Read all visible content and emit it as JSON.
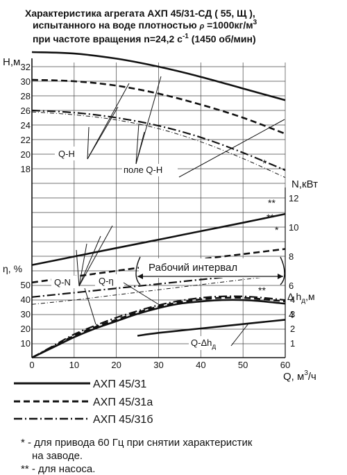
{
  "title": {
    "line1": "Характеристика агрегата АХП 45/31-СД ( 55, Щ ),",
    "line2a": "испытанного на воде плотностью ",
    "line2_rho": "ρ",
    "line2b": " =1000кг/м",
    "line2_exp": "3",
    "line3a": "при частоте вращения n=24,2 с",
    "line3_exp": "-1",
    "line3b": " (1450 об/мин)"
  },
  "chart_data": {
    "type": "line",
    "x": {
      "label": "Q, м",
      "label_exp": "3",
      "label_unit": "/ч",
      "range": [
        0,
        60
      ],
      "ticks": [
        "0",
        "10",
        "20",
        "30",
        "40",
        "50",
        "60"
      ]
    },
    "axes": {
      "H": {
        "label": "H,м",
        "range": [
          16,
          34
        ],
        "ticks": [
          "18",
          "20",
          "22",
          "24",
          "26",
          "28",
          "30",
          "32"
        ]
      },
      "N": {
        "label": "N,кВт",
        "range": [
          3,
          13
        ],
        "ticks": [
          "4",
          "6",
          "8",
          "10",
          "12"
        ]
      },
      "eta": {
        "label": "η, %",
        "range": [
          0,
          60
        ],
        "ticks": [
          "10",
          "20",
          "30",
          "40",
          "50"
        ]
      },
      "dh": {
        "label": "Δ h",
        "label_sub": "д",
        "label_suffix": ",м",
        "range": [
          0,
          5
        ],
        "ticks": [
          "1",
          "2",
          "3",
          "4"
        ]
      }
    },
    "series": [
      {
        "name": "АХП 45/31",
        "style": "solid",
        "QH": [
          [
            0,
            34.0
          ],
          [
            10,
            33.8
          ],
          [
            20,
            33.1
          ],
          [
            30,
            32.0
          ],
          [
            40,
            30.6
          ],
          [
            50,
            29.0
          ],
          [
            60,
            27.4
          ]
        ],
        "QN": [
          [
            0,
            7.4
          ],
          [
            10,
            7.98
          ],
          [
            20,
            8.56
          ],
          [
            30,
            9.14
          ],
          [
            40,
            9.72
          ],
          [
            50,
            10.3
          ],
          [
            60,
            10.9
          ]
        ],
        "Qeta": [
          [
            0,
            0
          ],
          [
            5,
            7
          ],
          [
            10,
            14
          ],
          [
            15,
            20
          ],
          [
            20,
            25
          ],
          [
            25,
            30
          ],
          [
            30,
            34
          ],
          [
            35,
            37
          ],
          [
            40,
            38.5
          ],
          [
            45,
            39.5
          ],
          [
            50,
            39.5
          ],
          [
            55,
            38.5
          ],
          [
            60,
            37
          ]
        ],
        "Qdh": [
          [
            25,
            1.5
          ],
          [
            30,
            1.7
          ],
          [
            40,
            2.0
          ],
          [
            50,
            2.3
          ],
          [
            60,
            2.6
          ]
        ]
      },
      {
        "name": "АХП 45/31а",
        "style": "dashed",
        "QH": [
          [
            0,
            30.2
          ],
          [
            10,
            30.0
          ],
          [
            20,
            29.4
          ],
          [
            30,
            28.3
          ],
          [
            40,
            26.8
          ],
          [
            50,
            25.0
          ],
          [
            60,
            22.8
          ]
        ],
        "QN": [
          [
            0,
            6.2
          ],
          [
            10,
            6.6
          ],
          [
            20,
            7.0
          ],
          [
            30,
            7.4
          ],
          [
            40,
            7.8
          ],
          [
            50,
            8.15
          ],
          [
            60,
            8.5
          ]
        ],
        "Qeta": [
          [
            0,
            0
          ],
          [
            5,
            7.5
          ],
          [
            10,
            15
          ],
          [
            15,
            21
          ],
          [
            20,
            26
          ],
          [
            25,
            31
          ],
          [
            30,
            35
          ],
          [
            35,
            38
          ],
          [
            40,
            40
          ],
          [
            45,
            41
          ],
          [
            50,
            41
          ],
          [
            55,
            40
          ],
          [
            60,
            38.5
          ]
        ]
      },
      {
        "name": "АХП 45/31б",
        "style": "dash-dot",
        "QH": [
          [
            0,
            26.0
          ],
          [
            10,
            25.7
          ],
          [
            20,
            25.0
          ],
          [
            30,
            23.9
          ],
          [
            40,
            22.3
          ],
          [
            50,
            20.2
          ],
          [
            60,
            17.8
          ]
        ],
        "QN": [
          [
            0,
            5.2
          ],
          [
            10,
            5.5
          ],
          [
            20,
            5.8
          ],
          [
            30,
            6.1
          ],
          [
            40,
            6.4
          ],
          [
            50,
            6.7
          ],
          [
            60,
            7.0
          ]
        ],
        "Qeta": [
          [
            0,
            0
          ],
          [
            5,
            8
          ],
          [
            10,
            16
          ],
          [
            15,
            22
          ],
          [
            20,
            27.5
          ],
          [
            25,
            32
          ],
          [
            30,
            36
          ],
          [
            35,
            39
          ],
          [
            40,
            41
          ],
          [
            45,
            42
          ],
          [
            50,
            42
          ],
          [
            55,
            41
          ],
          [
            60,
            39.5
          ]
        ]
      },
      {
        "name": "",
        "style": "thin-dash-dot",
        "QH": [
          [
            0,
            25.8
          ],
          [
            10,
            25.4
          ],
          [
            20,
            24.7
          ],
          [
            30,
            23.5
          ],
          [
            40,
            21.7
          ],
          [
            50,
            19.4
          ],
          [
            60,
            16.8
          ]
        ],
        "QN": [
          [
            0,
            4.7
          ],
          [
            10,
            5.0
          ],
          [
            20,
            5.35
          ],
          [
            30,
            5.7
          ],
          [
            40,
            6.05
          ],
          [
            50,
            6.4
          ],
          [
            60,
            6.75
          ]
        ]
      }
    ],
    "annotations": {
      "qh": "Q-H",
      "field": "поле Q-H",
      "qn": "Q-N",
      "qeta": "Q-η",
      "work": "Рабочий интервал",
      "work_range": [
        25,
        60
      ],
      "qdh": "Q-Δh",
      "qdh_sub": "д",
      "star1": "*",
      "star2": "**"
    },
    "legend": [
      "АХП 45/31",
      "АХП 45/31а",
      "АХП 45/31б"
    ],
    "grid": true
  },
  "footnotes": {
    "f1a": "* - для привода 60 Гц при снятии характеристик",
    "f1b": "на заводе.",
    "f2": "** - для насоса."
  }
}
